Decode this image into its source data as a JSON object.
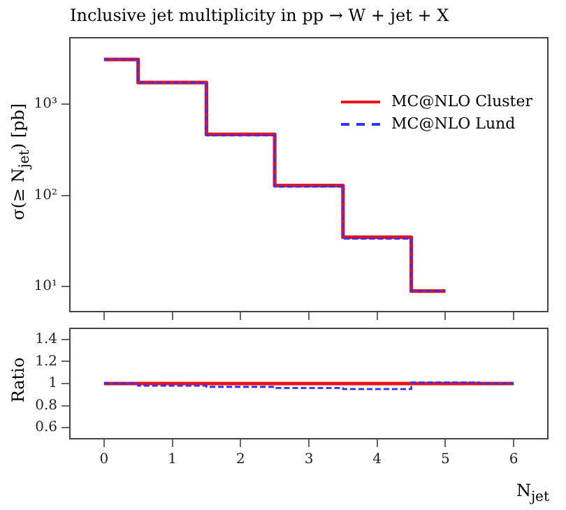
{
  "chart_data": [
    {
      "type": "step",
      "title": "Inclusive jet multiplicity in pp → W + jet + X",
      "ylabel": "σ(≥ N$_{jet}$) [pb]",
      "x": [
        0,
        1,
        2,
        3,
        4,
        5
      ],
      "xlim": [
        -0.5,
        6.5
      ],
      "xticks": [
        0,
        1,
        2,
        3,
        4,
        5,
        6
      ],
      "log": true,
      "ylim": [
        5.3,
        5370
      ],
      "yticks": [
        {
          "value": 10,
          "label": "10¹"
        },
        {
          "value": 100,
          "label": "10²"
        },
        {
          "value": 1000,
          "label": "10³"
        }
      ],
      "tick_labels": "y",
      "legend": "top right",
      "marker": "none",
      "grid": false,
      "series": [
        {
          "name": "MC@NLO Cluster",
          "color": "#e8141a",
          "line_style": "solid",
          "values": [
            3100,
            1730,
            466,
            128,
            34.7,
            8.9
          ]
        },
        {
          "name": "MC@NLO Lund",
          "color": "#3333ff",
          "line_style": "dashed",
          "values": [
            3100,
            1730,
            455,
            125,
            33.5,
            8.9
          ]
        }
      ]
    },
    {
      "type": "step",
      "ylabel": "Ratio",
      "xlabel": "N$_{jet}$",
      "x": [
        0,
        1,
        2,
        3,
        4,
        5,
        6
      ],
      "xlim": [
        -0.5,
        6.5
      ],
      "xticks": [
        0,
        1,
        2,
        3,
        4,
        5,
        6
      ],
      "ylim": [
        0.5,
        1.5
      ],
      "yticks": [
        0.6,
        0.8,
        1,
        1.2,
        1.4
      ],
      "marker": "none",
      "grid": false,
      "series": [
        {
          "color": "#e8141a",
          "line_style": "solid",
          "values": [
            1,
            1,
            1,
            1,
            1,
            1,
            1
          ]
        },
        {
          "color": "#3333ff",
          "line_style": "dashed",
          "values": [
            1,
            0.98,
            0.97,
            0.96,
            0.95,
            1.01,
            1
          ]
        }
      ]
    }
  ]
}
